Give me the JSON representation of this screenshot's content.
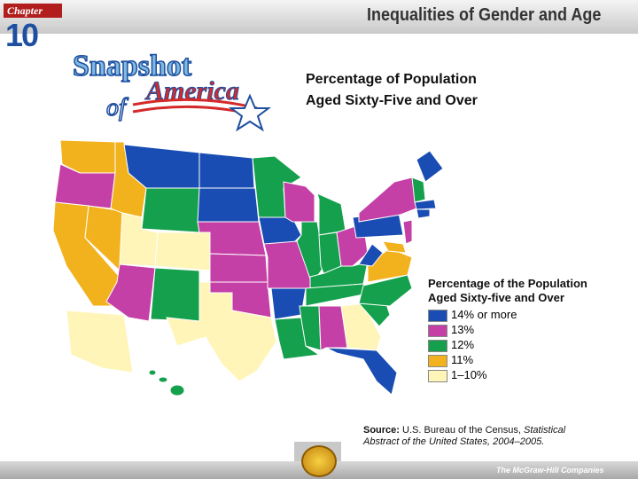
{
  "header": {
    "chapter_label": "Chapter",
    "chapter_number": "10",
    "title": "Inequalities of Gender and Age"
  },
  "logo": {
    "snapshot": "Snapshot",
    "of": "of",
    "america": "America"
  },
  "title_lines": [
    "Percentage of Population",
    "Aged Sixty-Five and Over"
  ],
  "legend": {
    "title_lines": [
      "Percentage of the Population",
      "Aged Sixty-five and Over"
    ],
    "items": [
      {
        "label": "14% or more",
        "color": "#1a4db3"
      },
      {
        "label": "13%",
        "color": "#c43fa6"
      },
      {
        "label": "12%",
        "color": "#14a04c"
      },
      {
        "label": "11%",
        "color": "#f2b21e"
      },
      {
        "label": "1–10%",
        "color": "#fff5b8"
      }
    ]
  },
  "source": {
    "label": "Source:",
    "text": "U.S. Bureau of the Census,",
    "italic": "Statistical Abstract of the United States, 2004–2005."
  },
  "footer": {
    "publisher": "The McGraw-Hill Companies"
  }
}
